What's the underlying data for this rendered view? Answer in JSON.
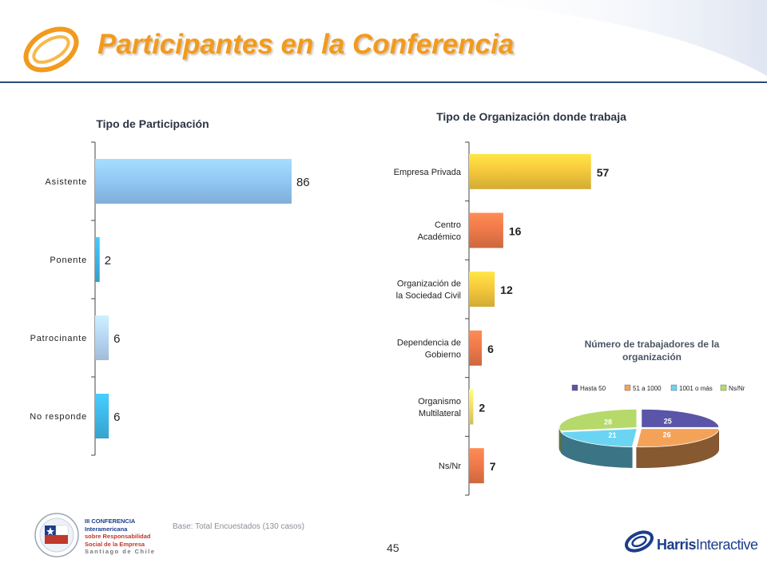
{
  "header": {
    "title": "Participantes en la Conferencia"
  },
  "chart_data": [
    {
      "type": "bar",
      "orientation": "horizontal",
      "title": "Tipo de Participación",
      "categories": [
        "Asistente",
        "Ponente",
        "Patrocinante",
        "No responde"
      ],
      "values": [
        86,
        2,
        6,
        6
      ],
      "xlim": [
        0,
        100
      ],
      "colors": [
        "#92c6f4",
        "#3db4e6",
        "#b7d6f4",
        "#3fb8e8"
      ]
    },
    {
      "type": "bar",
      "orientation": "horizontal",
      "title": "Tipo de Organización donde trabaja",
      "categories": [
        "Empresa Privada",
        "Centro Académico",
        "Organización de la Sociedad Civil",
        "Dependencia de Gobierno",
        "Organismo Multilateral",
        "Ns/Nr"
      ],
      "category_lines": [
        [
          "Empresa Privada"
        ],
        [
          "Centro",
          "Académico"
        ],
        [
          "Organización de",
          "la Sociedad Civil"
        ],
        [
          "Dependencia de",
          "Gobierno"
        ],
        [
          "Organismo",
          "Multilateral"
        ],
        [
          "Ns/Nr"
        ]
      ],
      "values": [
        57,
        16,
        12,
        6,
        2,
        7
      ],
      "xlim": [
        0,
        100
      ],
      "colors": [
        "#f7c93c",
        "#f07a4a",
        "#f7c93c",
        "#f07a4a",
        "#f5e06a",
        "#f07a4a"
      ]
    },
    {
      "type": "pie",
      "title": "Número de trabajadores de la organización",
      "categories": [
        "Hasta 50",
        "51 a 1000",
        "1001 o más",
        "Ns/Nr"
      ],
      "values": [
        25,
        26,
        21,
        28
      ],
      "colors": [
        "#5a55a8",
        "#f5a259",
        "#6bd4f2",
        "#b6d96b"
      ],
      "legend_position": "top"
    }
  ],
  "footer": {
    "base_note": "Base: Total Encuestados (130 casos)",
    "page_number": "45",
    "conference_lines": [
      "III CONFERENCIA",
      "Interamericana",
      "sobre Responsabilidad",
      "Social de la Empresa",
      "Santiago de Chile"
    ],
    "logo_brand": "Harris",
    "logo_suffix": "Interactive"
  }
}
